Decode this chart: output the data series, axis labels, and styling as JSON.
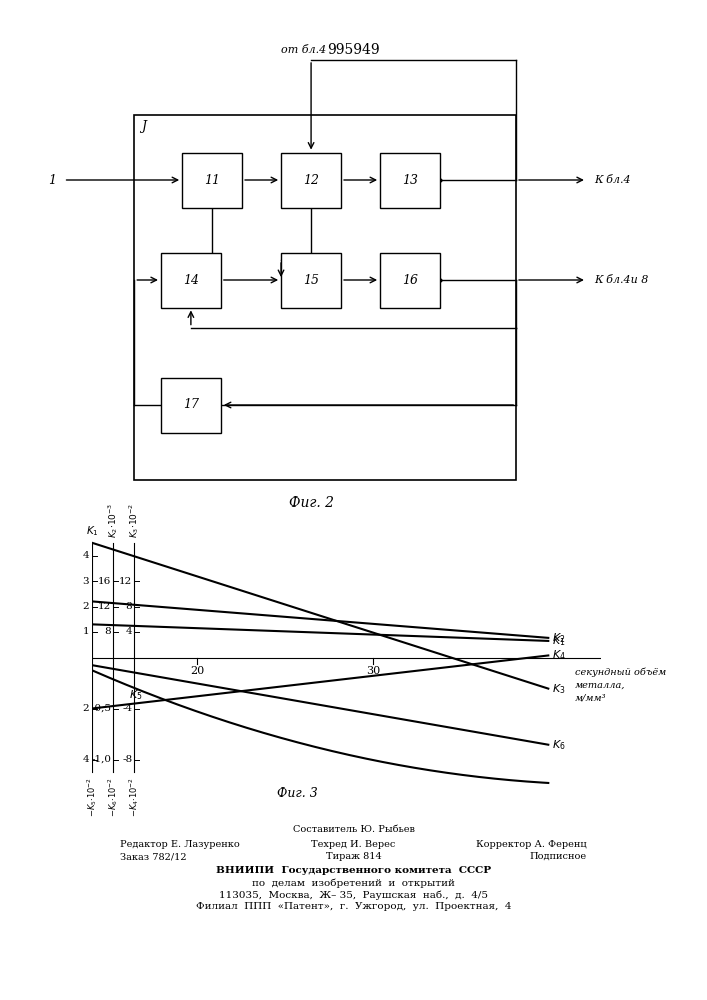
{
  "patent_number": "995949",
  "fig2_caption": "Фиг. 2",
  "fig3_caption": "Фиг. 3",
  "label_J": "J",
  "label_1": "1",
  "label_from_bl4": "от бл.4",
  "label_to_bl4": "К бл.4",
  "label_to_bl4i8": "К бл.4и 8",
  "graph_x_label_line1": "секундный объём",
  "graph_x_label_line2": "металла,",
  "graph_x_label_line3": "м/мм³",
  "footer_line1": "ВНИИПИ  Государственного комитета  СССР",
  "footer_line2": "по  делам  изобретений  и  открытий",
  "footer_line3": "113035,  Москва,  Ж– 35,  Раушская  наб.,  д.  4/5",
  "footer_line4": "Филиал  ППП  «Патент»,  г.  Ужгород,  ул.  Проектная,  4",
  "editor_left": "Редактор Е. Лазуренко",
  "editor_center": "Техред И. Верес",
  "editor_right": "Корректор А. Ференц",
  "order_left": "Заказ 782/12",
  "order_center": "Тираж 814",
  "order_right": "Подписное",
  "composer": "Составитель Ю. Рыбьев"
}
